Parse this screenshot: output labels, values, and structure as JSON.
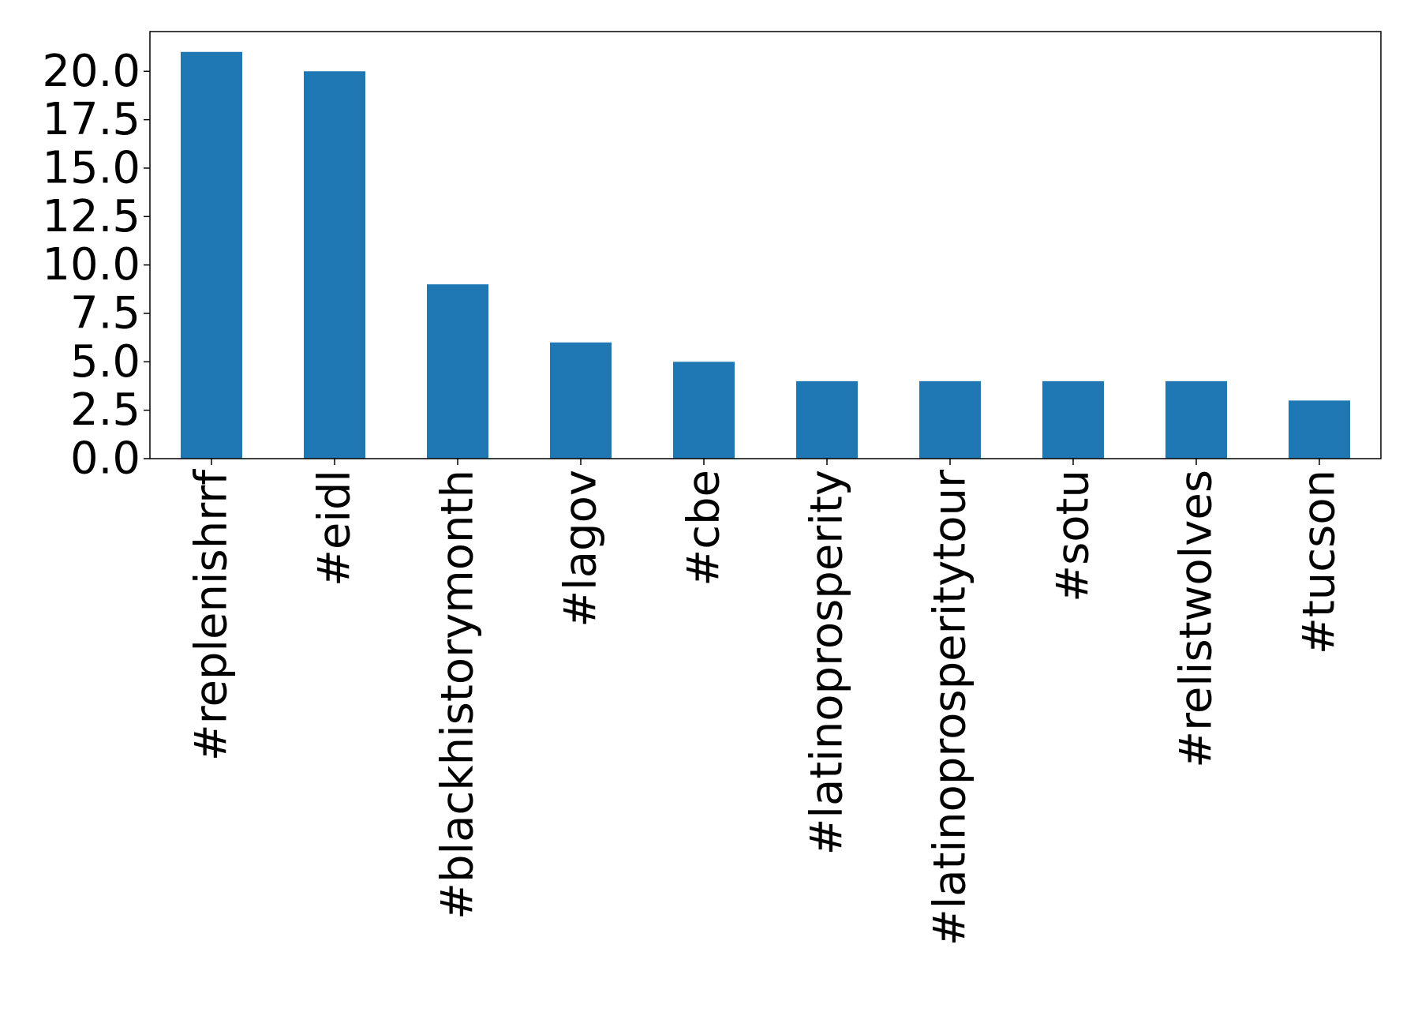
{
  "chart_data": {
    "type": "bar",
    "title": "",
    "xlabel": "",
    "ylabel": "",
    "categories": [
      "#replenishrrf",
      "#eidl",
      "#blackhistorymonth",
      "#lagov",
      "#cbe",
      "#latinoprosperity",
      "#latinoprosperitytour",
      "#sotu",
      "#relistwolves",
      "#tucson"
    ],
    "values": [
      21,
      20,
      9,
      6,
      5,
      4,
      4,
      4,
      4,
      3
    ],
    "ylim": [
      0,
      22.05
    ],
    "yticks": [
      0,
      2.5,
      5,
      7.5,
      10,
      12.5,
      15,
      17.5,
      20
    ],
    "ytick_labels": [
      "0.0",
      "2.5",
      "5.0",
      "7.5",
      "10.0",
      "12.5",
      "15.0",
      "17.5",
      "20.0"
    ],
    "bar_color": "#1f77b4",
    "grid": false,
    "legend": "none"
  }
}
